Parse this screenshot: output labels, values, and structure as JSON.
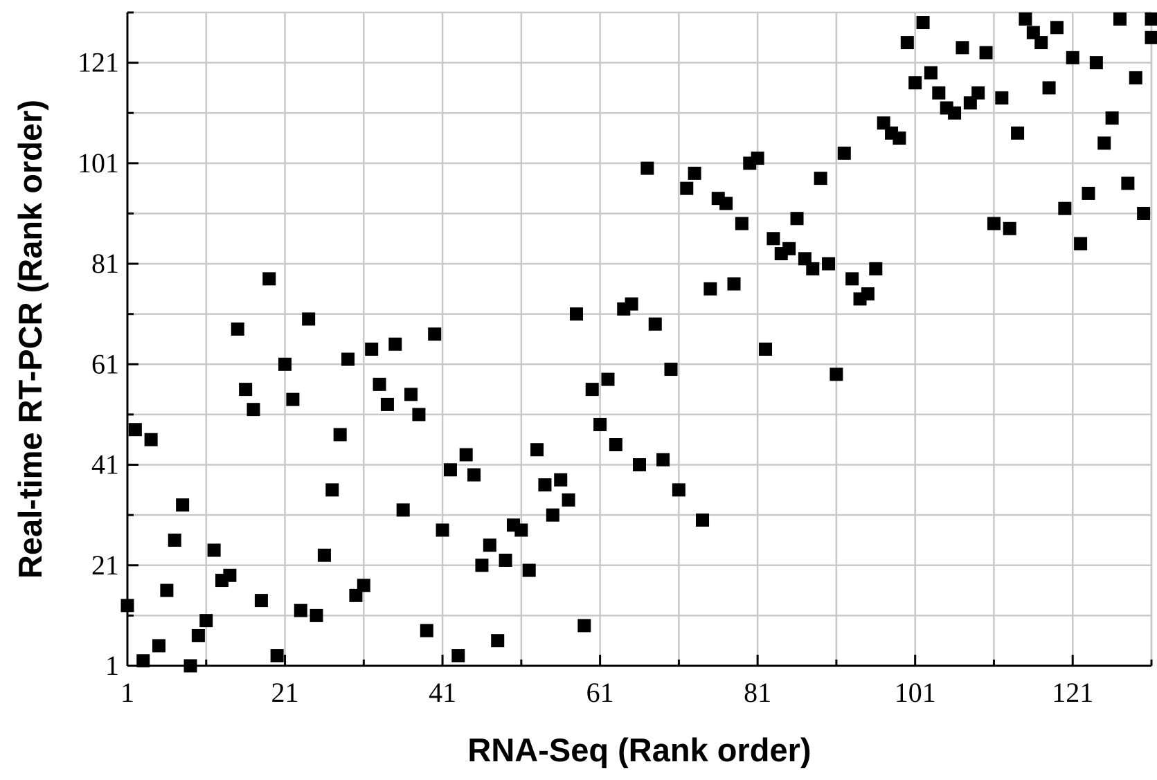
{
  "chart_data": {
    "type": "scatter",
    "title": "",
    "xlabel": "RNA-Seq (Rank order)",
    "ylabel": "Real-time RT-PCR (Rank order)",
    "xlim": [
      1,
      131
    ],
    "ylim": [
      1,
      131
    ],
    "x_ticks": [
      1,
      21,
      41,
      61,
      81,
      101,
      121
    ],
    "y_ticks": [
      1,
      21,
      41,
      61,
      81,
      101,
      121
    ],
    "minor_step": 10,
    "grid": true,
    "marker": "square",
    "marker_color": "#000000",
    "points": [
      [
        1,
        13
      ],
      [
        2,
        48
      ],
      [
        3,
        2
      ],
      [
        4,
        46
      ],
      [
        5,
        5
      ],
      [
        6,
        16
      ],
      [
        7,
        26
      ],
      [
        8,
        33
      ],
      [
        9,
        1
      ],
      [
        10,
        7
      ],
      [
        11,
        10
      ],
      [
        12,
        24
      ],
      [
        13,
        18
      ],
      [
        14,
        19
      ],
      [
        15,
        68
      ],
      [
        16,
        56
      ],
      [
        17,
        52
      ],
      [
        18,
        14
      ],
      [
        19,
        78
      ],
      [
        20,
        3
      ],
      [
        21,
        61
      ],
      [
        22,
        54
      ],
      [
        23,
        12
      ],
      [
        24,
        70
      ],
      [
        25,
        11
      ],
      [
        26,
        23
      ],
      [
        27,
        36
      ],
      [
        28,
        47
      ],
      [
        29,
        62
      ],
      [
        30,
        15
      ],
      [
        31,
        17
      ],
      [
        32,
        64
      ],
      [
        33,
        57
      ],
      [
        34,
        53
      ],
      [
        35,
        65
      ],
      [
        36,
        32
      ],
      [
        37,
        55
      ],
      [
        38,
        51
      ],
      [
        39,
        8
      ],
      [
        40,
        67
      ],
      [
        41,
        28
      ],
      [
        42,
        40
      ],
      [
        43,
        3
      ],
      [
        44,
        43
      ],
      [
        45,
        39
      ],
      [
        46,
        21
      ],
      [
        47,
        25
      ],
      [
        48,
        6
      ],
      [
        49,
        22
      ],
      [
        50,
        29
      ],
      [
        51,
        28
      ],
      [
        52,
        20
      ],
      [
        53,
        44
      ],
      [
        54,
        37
      ],
      [
        55,
        31
      ],
      [
        56,
        38
      ],
      [
        57,
        34
      ],
      [
        58,
        71
      ],
      [
        59,
        9
      ],
      [
        60,
        56
      ],
      [
        61,
        49
      ],
      [
        62,
        58
      ],
      [
        63,
        45
      ],
      [
        64,
        72
      ],
      [
        65,
        73
      ],
      [
        66,
        41
      ],
      [
        67,
        100
      ],
      [
        68,
        69
      ],
      [
        69,
        42
      ],
      [
        70,
        60
      ],
      [
        71,
        36
      ],
      [
        72,
        96
      ],
      [
        73,
        99
      ],
      [
        74,
        30
      ],
      [
        75,
        76
      ],
      [
        76,
        94
      ],
      [
        77,
        93
      ],
      [
        78,
        77
      ],
      [
        79,
        89
      ],
      [
        80,
        101
      ],
      [
        81,
        102
      ],
      [
        82,
        64
      ],
      [
        83,
        86
      ],
      [
        84,
        83
      ],
      [
        85,
        84
      ],
      [
        86,
        90
      ],
      [
        87,
        82
      ],
      [
        88,
        80
      ],
      [
        89,
        98
      ],
      [
        90,
        81
      ],
      [
        91,
        59
      ],
      [
        92,
        103
      ],
      [
        93,
        78
      ],
      [
        94,
        74
      ],
      [
        95,
        75
      ],
      [
        96,
        80
      ],
      [
        97,
        109
      ],
      [
        98,
        107
      ],
      [
        99,
        106
      ],
      [
        100,
        125
      ],
      [
        101,
        117
      ],
      [
        102,
        129
      ],
      [
        103,
        119
      ],
      [
        104,
        115
      ],
      [
        105,
        112
      ],
      [
        106,
        111
      ],
      [
        107,
        124
      ],
      [
        108,
        113
      ],
      [
        109,
        115
      ],
      [
        110,
        123
      ],
      [
        111,
        89
      ],
      [
        112,
        114
      ],
      [
        113,
        88
      ],
      [
        114,
        107
      ],
      [
        115,
        132
      ],
      [
        116,
        127
      ],
      [
        117,
        125
      ],
      [
        118,
        116
      ],
      [
        119,
        128
      ],
      [
        120,
        92
      ],
      [
        121,
        122
      ],
      [
        122,
        85
      ],
      [
        123,
        95
      ],
      [
        124,
        121
      ],
      [
        125,
        105
      ],
      [
        126,
        110
      ],
      [
        127,
        131
      ],
      [
        128,
        97
      ],
      [
        129,
        118
      ],
      [
        130,
        91
      ],
      [
        131,
        130
      ],
      [
        132,
        126
      ]
    ]
  }
}
